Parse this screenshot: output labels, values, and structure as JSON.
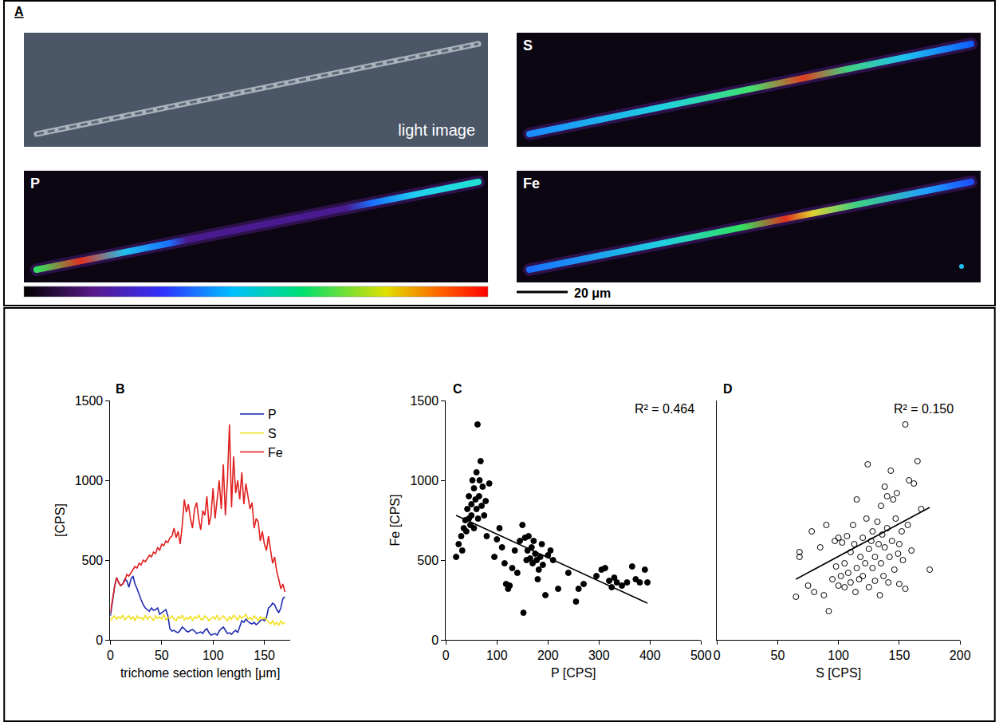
{
  "panel_a": {
    "label": "A",
    "scale_bar": "20 μm",
    "images": [
      {
        "label": "light image"
      },
      {
        "label": "S"
      },
      {
        "label": "P"
      },
      {
        "label": "Fe"
      }
    ]
  },
  "chart_data": [
    {
      "panel": "B",
      "type": "line",
      "xlabel": "trichome section length [μm]",
      "ylabel": "[CPS]",
      "x": [
        0,
        2,
        4,
        6,
        8,
        10,
        12,
        14,
        16,
        18,
        20,
        22,
        24,
        26,
        28,
        30,
        32,
        34,
        36,
        38,
        40,
        42,
        44,
        46,
        48,
        50,
        52,
        54,
        56,
        58,
        60,
        62,
        64,
        66,
        68,
        70,
        72,
        74,
        76,
        78,
        80,
        82,
        84,
        86,
        88,
        90,
        92,
        94,
        96,
        98,
        100,
        102,
        104,
        106,
        108,
        110,
        112,
        114,
        116,
        118,
        120,
        122,
        124,
        126,
        128,
        130,
        132,
        134,
        136,
        138,
        140,
        142,
        144,
        146,
        148,
        150,
        152,
        154,
        156,
        158,
        160,
        162,
        164,
        166,
        168,
        170
      ],
      "series": [
        {
          "name": "P",
          "color": "#1f2bb0",
          "values": [
            150,
            250,
            330,
            390,
            360,
            340,
            350,
            380,
            370,
            330,
            380,
            400,
            350,
            320,
            280,
            250,
            220,
            200,
            190,
            180,
            200,
            185,
            190,
            200,
            160,
            170,
            180,
            190,
            150,
            70,
            55,
            60,
            50,
            45,
            60,
            80,
            70,
            55,
            50,
            60,
            65,
            55,
            40,
            45,
            50,
            40,
            60,
            70,
            45,
            30,
            35,
            40,
            30,
            55,
            70,
            80,
            60,
            40,
            45,
            35,
            50,
            60,
            45,
            80,
            120,
            110,
            130,
            115,
            105,
            100,
            110,
            95,
            105,
            120,
            130,
            120,
            140,
            200,
            210,
            230,
            220,
            190,
            170,
            200,
            260,
            270
          ]
        },
        {
          "name": "S",
          "color": "#f0e020",
          "values": [
            120,
            140,
            150,
            130,
            145,
            135,
            155,
            125,
            140,
            150,
            130,
            145,
            120,
            150,
            135,
            140,
            125,
            155,
            130,
            145,
            140,
            120,
            150,
            135,
            145,
            130,
            160,
            125,
            140,
            135,
            150,
            130,
            120,
            145,
            135,
            155,
            125,
            140,
            130,
            150,
            120,
            145,
            135,
            155,
            130,
            125,
            150,
            140,
            120,
            135,
            145,
            130,
            155,
            125,
            140,
            150,
            135,
            120,
            145,
            130,
            155,
            140,
            125,
            150,
            135,
            145,
            160,
            130,
            140,
            125,
            150,
            135,
            120,
            145,
            130,
            140,
            125,
            110,
            100,
            120,
            95,
            110,
            90,
            120,
            100,
            110
          ]
        },
        {
          "name": "Fe",
          "color": "#e02020",
          "values": [
            170,
            260,
            330,
            390,
            360,
            340,
            350,
            370,
            410,
            400,
            420,
            440,
            460,
            450,
            480,
            470,
            500,
            490,
            510,
            530,
            520,
            550,
            540,
            580,
            560,
            600,
            590,
            620,
            610,
            640,
            650,
            700,
            640,
            680,
            600,
            720,
            880,
            800,
            850,
            760,
            700,
            820,
            860,
            760,
            690,
            810,
            780,
            900,
            720,
            780,
            950,
            760,
            880,
            1000,
            820,
            1100,
            780,
            1000,
            1350,
            830,
            1150,
            920,
            1000,
            880,
            1050,
            850,
            980,
            900,
            820,
            860,
            700,
            760,
            740,
            620,
            680,
            600,
            560,
            650,
            560,
            480,
            520,
            430,
            380,
            320,
            350,
            300
          ]
        }
      ],
      "xlim": [
        0,
        175
      ],
      "xticks": [
        0,
        50,
        100,
        150
      ],
      "ylim": [
        0,
        1500
      ],
      "yticks": [
        0,
        500,
        1000,
        1500
      ],
      "legend": "upper right",
      "grid": false
    },
    {
      "panel": "C",
      "type": "scatter",
      "xlabel": "P [CPS]",
      "ylabel": "Fe [CPS]",
      "annotation": "R² = 0.464",
      "series": [
        {
          "type": "scatter",
          "marker": "circle",
          "color": "#000000",
          "x": [
            20,
            25,
            30,
            32,
            35,
            38,
            40,
            42,
            45,
            45,
            48,
            50,
            50,
            52,
            55,
            55,
            58,
            60,
            60,
            62,
            63,
            65,
            66,
            68,
            70,
            72,
            75,
            78,
            80,
            85,
            95,
            100,
            105,
            110,
            115,
            118,
            122,
            125,
            130,
            135,
            140,
            145,
            150,
            152,
            155,
            158,
            160,
            162,
            165,
            168,
            170,
            172,
            175,
            178,
            180,
            182,
            185,
            188,
            190,
            195,
            200,
            205,
            210,
            220,
            240,
            255,
            260,
            270,
            295,
            305,
            312,
            320,
            325,
            330,
            335,
            345,
            355,
            365,
            372,
            380,
            390,
            395
          ],
          "values": [
            520,
            600,
            650,
            560,
            700,
            750,
            680,
            820,
            760,
            900,
            720,
            850,
            780,
            1000,
            950,
            700,
            880,
            1050,
            820,
            1350,
            760,
            900,
            1000,
            1120,
            840,
            960,
            780,
            870,
            650,
            980,
            520,
            630,
            700,
            580,
            480,
            350,
            320,
            340,
            450,
            560,
            420,
            620,
            720,
            170,
            640,
            500,
            560,
            650,
            510,
            580,
            480,
            620,
            540,
            500,
            380,
            440,
            520,
            600,
            470,
            280,
            530,
            560,
            500,
            320,
            420,
            240,
            320,
            350,
            400,
            440,
            450,
            370,
            330,
            390,
            360,
            340,
            360,
            460,
            380,
            360,
            440,
            360
          ]
        },
        {
          "type": "line",
          "color": "#000000",
          "x": [
            20,
            395
          ],
          "values": [
            780,
            230
          ]
        }
      ],
      "xlim": [
        0,
        500
      ],
      "xticks": [
        0,
        100,
        200,
        300,
        400,
        500
      ],
      "ylim": [
        0,
        1500
      ],
      "yticks": [
        0,
        500,
        1000,
        1500
      ],
      "grid": false
    },
    {
      "panel": "D",
      "type": "scatter",
      "xlabel": "S [CPS]",
      "annotation": "R² = 0.150",
      "series": [
        {
          "type": "scatter",
          "marker": "open-circle",
          "color": "#000000",
          "x": [
            65,
            68,
            68,
            75,
            78,
            80,
            85,
            88,
            90,
            92,
            95,
            97,
            98,
            100,
            100,
            102,
            103,
            105,
            105,
            107,
            108,
            110,
            110,
            112,
            113,
            114,
            115,
            115,
            117,
            118,
            120,
            120,
            122,
            123,
            124,
            125,
            125,
            127,
            128,
            128,
            130,
            130,
            132,
            133,
            134,
            135,
            135,
            136,
            137,
            138,
            138,
            140,
            140,
            141,
            142,
            143,
            144,
            145,
            146,
            147,
            148,
            149,
            150,
            150,
            152,
            153,
            155,
            155,
            157,
            158,
            160,
            162,
            165,
            168,
            175
          ],
          "values": [
            270,
            520,
            550,
            340,
            680,
            300,
            580,
            280,
            720,
            180,
            380,
            620,
            460,
            640,
            340,
            400,
            610,
            330,
            480,
            650,
            420,
            550,
            360,
            720,
            600,
            300,
            450,
            880,
            380,
            520,
            640,
            400,
            480,
            760,
            1100,
            570,
            330,
            620,
            450,
            680,
            370,
            520,
            740,
            600,
            280,
            480,
            840,
            660,
            400,
            960,
            580,
            700,
            900,
            360,
            520,
            1060,
            620,
            880,
            440,
            760,
            920,
            540,
            600,
            350,
            680,
            500,
            1350,
            320,
            720,
            1000,
            560,
            980,
            1120,
            820,
            440
          ]
        },
        {
          "type": "line",
          "color": "#000000",
          "x": [
            65,
            175
          ],
          "values": [
            380,
            830
          ]
        }
      ],
      "xlim": [
        0,
        200
      ],
      "xticks": [
        0,
        50,
        100,
        150,
        200
      ],
      "ylim": [
        0,
        1500
      ],
      "tick_labels": "x",
      "grid": false
    }
  ]
}
